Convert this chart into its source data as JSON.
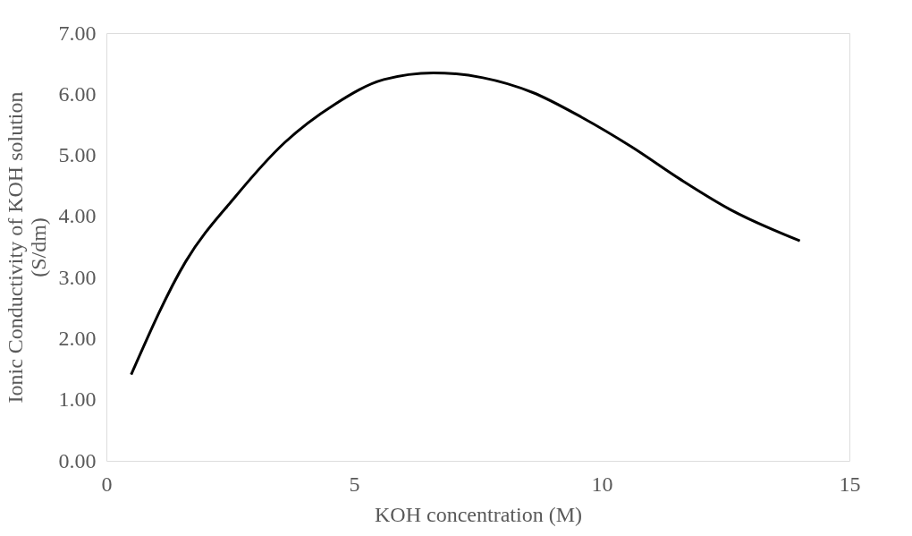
{
  "chart_data": {
    "type": "line",
    "xlabel": "KOH concentration (M)",
    "ylabel": "Ionic Conductivity of KOH solution\n(S/dm)",
    "x": [
      0.5,
      1.6,
      2.6,
      3.6,
      4.6,
      5.6,
      6.6,
      7.6,
      8.6,
      9.6,
      10.6,
      11.6,
      12.6,
      14.0
    ],
    "series": [
      {
        "color": "#000000",
        "values": [
          1.41,
          3.26,
          4.32,
          5.21,
          5.83,
          6.24,
          6.35,
          6.27,
          6.03,
          5.62,
          5.14,
          4.6,
          4.11,
          3.6
        ]
      }
    ],
    "xlim": [
      0,
      15
    ],
    "xticks": [
      0,
      5,
      10,
      15
    ],
    "ylim": [
      0,
      7
    ],
    "yticks": [
      {
        "value": 0,
        "label": "0.00"
      },
      {
        "value": 1,
        "label": "1.00"
      },
      {
        "value": 2,
        "label": "2.00"
      },
      {
        "value": 3,
        "label": "3.00"
      },
      {
        "value": 4,
        "label": "4.00"
      },
      {
        "value": 5,
        "label": "5.00"
      },
      {
        "value": 6,
        "label": "6.00"
      },
      {
        "value": 7,
        "label": "7.00"
      }
    ],
    "grid": false,
    "marker": "none",
    "line_style": "solid"
  }
}
